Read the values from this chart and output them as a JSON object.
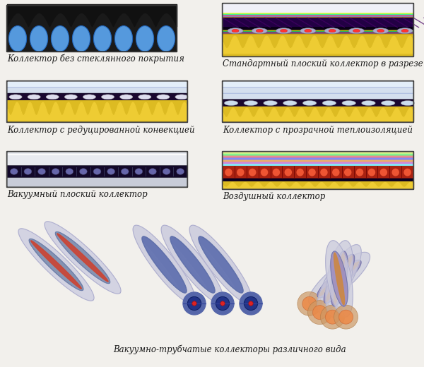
{
  "bg_color": "#f2f0ec",
  "label0": "Коллектор без стеклянного покрытия",
  "label1": "Стандартный плоский коллектор в разрезе",
  "label2": "Коллектор с редуцированной конвекцией",
  "label3": "Коллектор с прозрачной теплоизоляцией",
  "label4": "Вакуумный плоский коллектор",
  "label5": "Воздушный коллектор",
  "label6": "Вакуумно-трубчатые коллекторы различного вида",
  "fontsize": 8.5
}
